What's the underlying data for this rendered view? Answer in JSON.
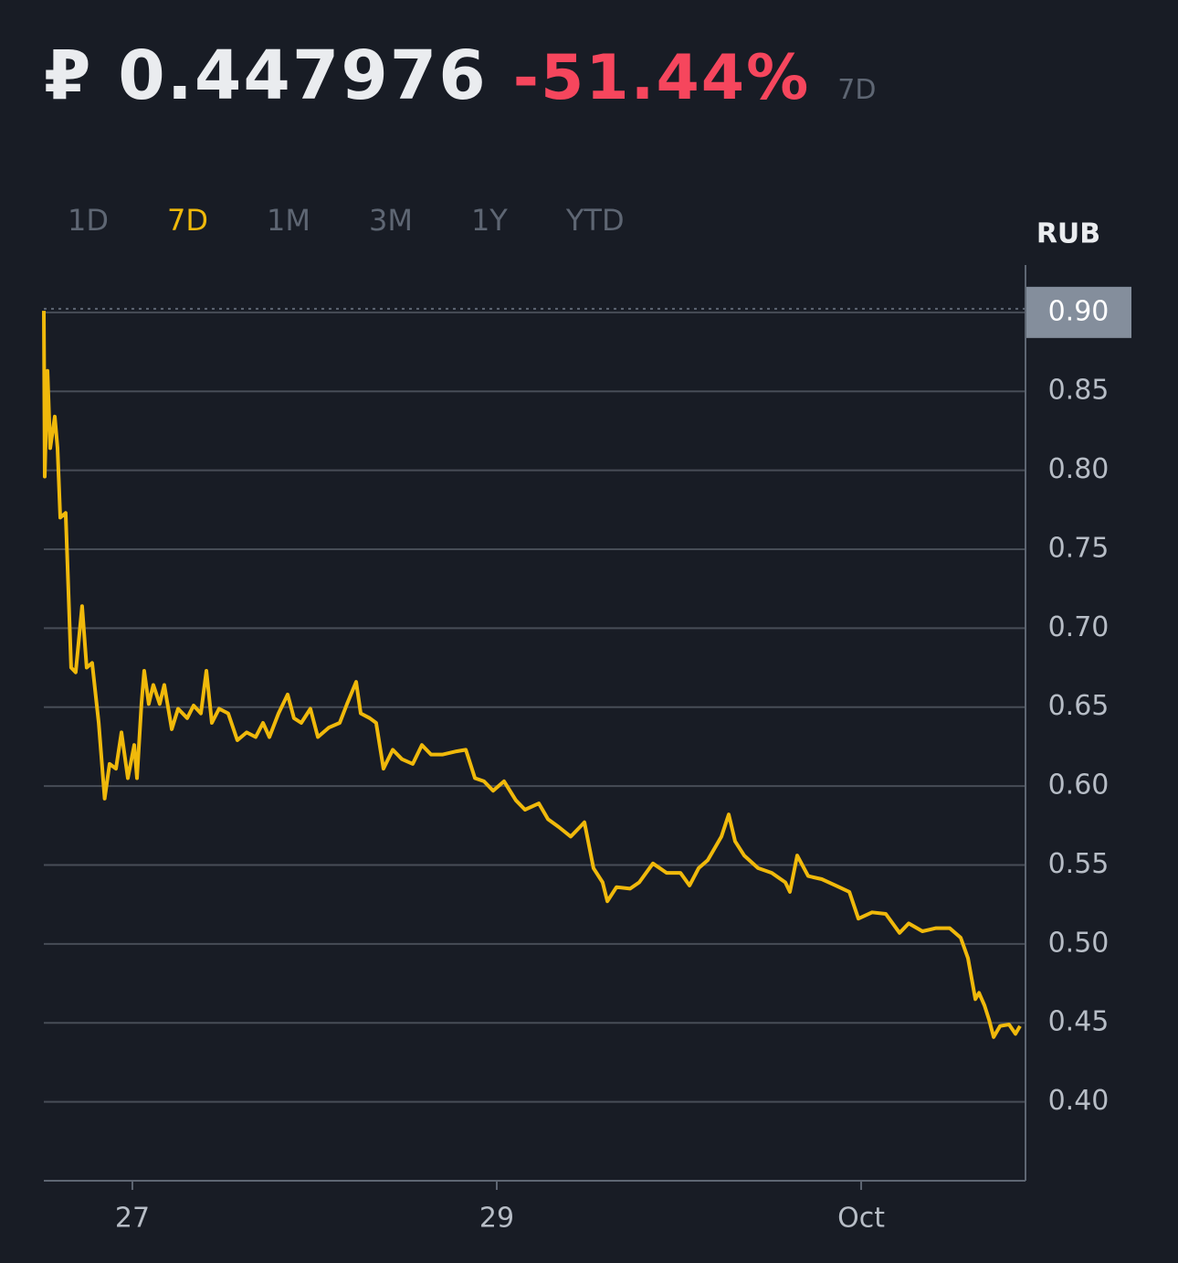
{
  "header": {
    "price": "₽ 0.447976",
    "change": "-51.44%",
    "period": "7D"
  },
  "tabs": {
    "items": [
      "1D",
      "7D",
      "1M",
      "3M",
      "1Y",
      "YTD"
    ],
    "active": 1
  },
  "chart_data": {
    "type": "line",
    "ylabel": "RUB",
    "color": "#f0b90b",
    "grid": true,
    "xlim": [
      26.514,
      31.902
    ],
    "xticks": [
      27,
      29,
      {
        "value": 31,
        "label": "Oct"
      }
    ],
    "ylim": [
      0.35,
      0.93
    ],
    "yticks": [
      {
        "value": 0.9,
        "label": "0.90"
      },
      0.85,
      {
        "value": 0.8,
        "label": "0.80"
      },
      0.75,
      {
        "value": 0.7,
        "label": "0.70"
      },
      0.65,
      {
        "value": 0.6,
        "label": "0.60"
      },
      0.55,
      {
        "value": 0.5,
        "label": "0.50"
      },
      0.45,
      {
        "value": 0.4,
        "label": "0.40"
      }
    ],
    "x": [
      26.514,
      26.519,
      26.534,
      26.549,
      26.574,
      26.589,
      26.604,
      26.634,
      26.664,
      26.689,
      26.724,
      26.749,
      26.779,
      26.815,
      26.848,
      26.875,
      26.91,
      26.94,
      26.975,
      27.01,
      27.025,
      27.05,
      27.065,
      27.09,
      27.115,
      27.15,
      27.175,
      27.216,
      27.251,
      27.301,
      27.336,
      27.376,
      27.406,
      27.436,
      27.476,
      27.526,
      27.576,
      27.627,
      27.677,
      27.717,
      27.752,
      27.802,
      27.852,
      27.887,
      27.927,
      27.977,
      28.018,
      28.078,
      28.138,
      28.178,
      28.228,
      28.253,
      28.303,
      28.338,
      28.378,
      28.429,
      28.479,
      28.539,
      28.589,
      28.639,
      28.704,
      28.779,
      28.83,
      28.88,
      28.93,
      28.98,
      29.04,
      29.105,
      29.155,
      29.231,
      29.281,
      29.341,
      29.406,
      29.481,
      29.531,
      29.581,
      29.607,
      29.657,
      29.732,
      29.782,
      29.857,
      29.932,
      30.008,
      30.058,
      30.108,
      30.158,
      30.233,
      30.273,
      30.308,
      30.358,
      30.434,
      30.509,
      30.584,
      30.609,
      30.649,
      30.709,
      30.784,
      30.86,
      30.935,
      30.985,
      31.06,
      31.135,
      31.211,
      31.261,
      31.336,
      31.411,
      31.486,
      31.546,
      31.586,
      31.627,
      31.647,
      31.677,
      31.702,
      31.727,
      31.762,
      31.812,
      31.847,
      31.872
    ],
    "values": [
      0.901,
      0.796,
      0.863,
      0.814,
      0.834,
      0.814,
      0.77,
      0.773,
      0.675,
      0.672,
      0.714,
      0.675,
      0.678,
      0.64,
      0.592,
      0.614,
      0.611,
      0.634,
      0.605,
      0.626,
      0.605,
      0.652,
      0.673,
      0.652,
      0.664,
      0.652,
      0.664,
      0.636,
      0.649,
      0.643,
      0.651,
      0.646,
      0.673,
      0.64,
      0.649,
      0.646,
      0.629,
      0.634,
      0.631,
      0.64,
      0.631,
      0.646,
      0.658,
      0.643,
      0.64,
      0.649,
      0.631,
      0.637,
      0.64,
      0.652,
      0.666,
      0.646,
      0.643,
      0.64,
      0.611,
      0.623,
      0.617,
      0.614,
      0.626,
      0.62,
      0.62,
      0.622,
      0.623,
      0.605,
      0.603,
      0.597,
      0.603,
      0.591,
      0.585,
      0.589,
      0.579,
      0.574,
      0.568,
      0.577,
      0.548,
      0.539,
      0.527,
      0.536,
      0.535,
      0.539,
      0.551,
      0.545,
      0.545,
      0.537,
      0.548,
      0.553,
      0.568,
      0.582,
      0.565,
      0.556,
      0.548,
      0.545,
      0.539,
      0.533,
      0.556,
      0.543,
      0.541,
      0.537,
      0.533,
      0.516,
      0.52,
      0.519,
      0.507,
      0.513,
      0.508,
      0.51,
      0.51,
      0.504,
      0.491,
      0.465,
      0.469,
      0.461,
      0.452,
      0.441,
      0.448,
      0.449,
      0.443,
      0.448
    ]
  }
}
